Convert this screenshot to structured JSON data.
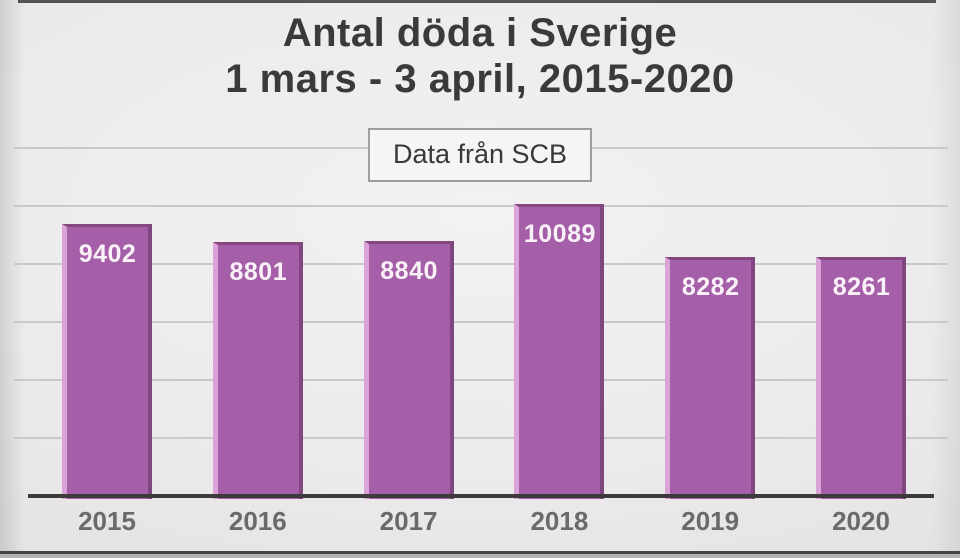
{
  "page": {
    "title_line1": "Antal döda i Sverige",
    "title_line2": "1 mars - 3 april, 2015-2020",
    "source_label": "Data från SCB"
  },
  "chart_data": {
    "type": "bar",
    "title": "Antal döda i Sverige",
    "subtitle": "1 mars - 3 april, 2015-2020",
    "annotation": "Data från SCB",
    "categories": [
      "2015",
      "2016",
      "2017",
      "2018",
      "2019",
      "2020"
    ],
    "values": [
      9402,
      8801,
      8840,
      10089,
      8282,
      8261
    ],
    "xlabel": "",
    "ylabel": "",
    "ylim": [
      0,
      13000
    ],
    "gridline_values": [
      2000,
      4000,
      6000,
      8000,
      10000,
      12000
    ],
    "grid": "horizontal-only",
    "legend": "none",
    "value_labels": "inside-top-white",
    "bar_color": "#a55fa8",
    "bar_edge_light": "#dba4d8",
    "bar_edge_dark": "#80467f",
    "value_label_color": "#faf1f8",
    "axis_color": "#3c3a3b",
    "tick_label_color": "#6b6a6a",
    "background_color": "#ebe9ea"
  }
}
